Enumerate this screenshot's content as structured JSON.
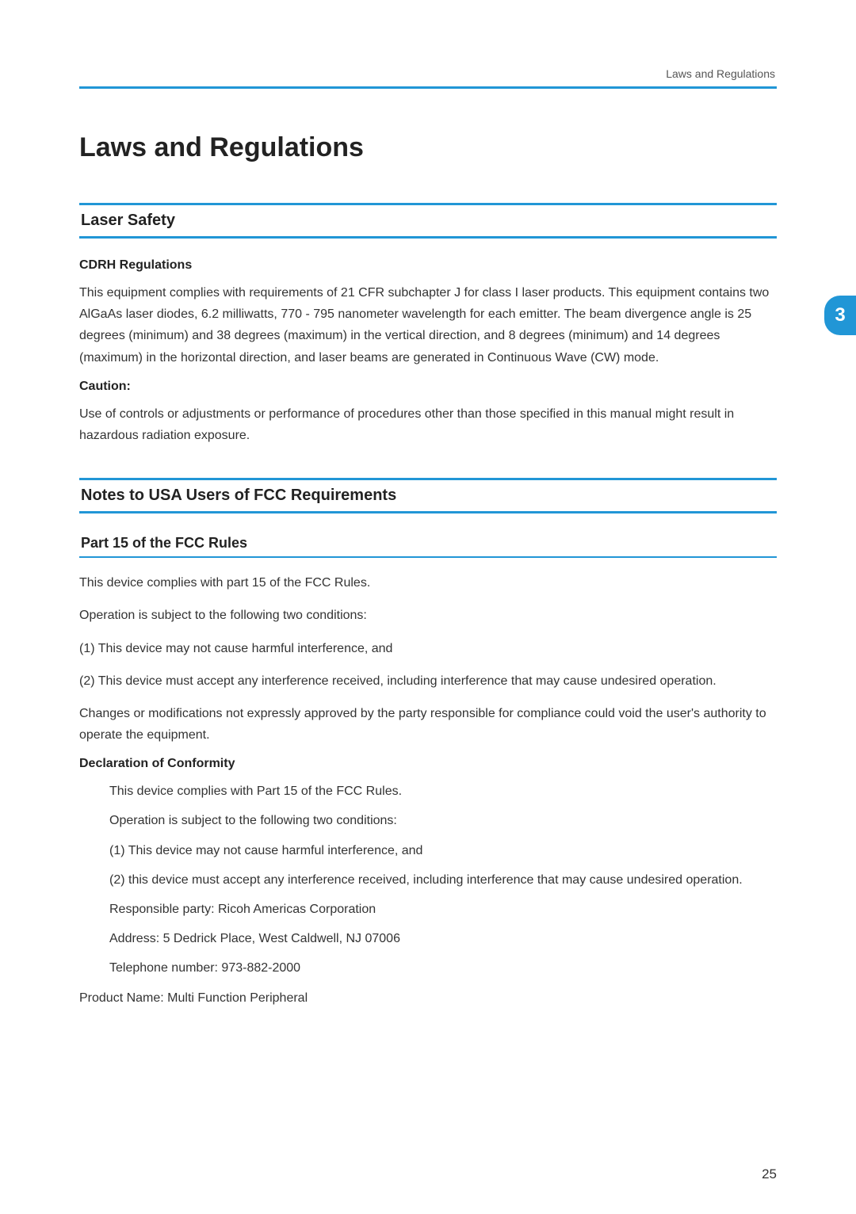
{
  "document": {
    "background_color": "#ffffff",
    "text_color": "#333333",
    "accent_color": "#2196d6",
    "body_fontsize": 16,
    "heading_color": "#222222",
    "title_fontsize": 34,
    "h2_fontsize": 20,
    "h3_fontsize": 18,
    "subheading_fontsize": 16
  },
  "header": {
    "running_head": "Laws and Regulations"
  },
  "side_tab": {
    "number": "3",
    "bg_color": "#2196d6",
    "text_color": "#ffffff"
  },
  "title": "Laws and Regulations",
  "sections": {
    "laser_safety": {
      "heading": "Laser Safety",
      "sub1_heading": "CDRH Regulations",
      "sub1_text": "This equipment complies with requirements of 21 CFR subchapter J for class I laser products. This equipment contains two AlGaAs laser diodes, 6.2 milliwatts, 770 ‑ 795 nanometer wavelength for each emitter. The beam divergence angle is 25 degrees (minimum) and 38 degrees (maximum) in the vertical direction, and 8 degrees (minimum) and 14 degrees (maximum) in the horizontal direction, and laser beams are generated in Continuous Wave (CW) mode.",
      "caution_heading": "Caution:",
      "caution_text": "Use of controls or adjustments or performance of procedures other than those specified in this manual might result in hazardous radiation exposure."
    },
    "fcc": {
      "heading": "Notes to USA Users of FCC Requirements",
      "part15_heading": "Part 15 of the FCC Rules",
      "para1": "This device complies with part 15 of the FCC Rules.",
      "para2": "Operation is subject to the following two conditions:",
      "para3": "(1) This device may not cause harmful interference, and",
      "para4": "(2) This device must accept any interference received, including interference that may cause undesired operation.",
      "para5": "Changes or modifications not expressly approved by the party responsible for compliance could void the user's authority to operate the equipment.",
      "declaration_heading": "Declaration of Conformity",
      "decl": {
        "line1": "This device complies with Part 15 of the FCC Rules.",
        "line2": "Operation is subject to the following two conditions:",
        "line3": "(1) This device may not cause harmful interference, and",
        "line4": "(2) this device must accept any interference received, including interference that may cause undesired operation.",
        "line5": "Responsible party: Ricoh Americas Corporation",
        "line6": "Address: 5 Dedrick Place, West Caldwell, NJ 07006",
        "line7": "Telephone number: 973-882-2000"
      },
      "product_name": "Product Name: Multi Function Peripheral"
    }
  },
  "page_number": "25"
}
